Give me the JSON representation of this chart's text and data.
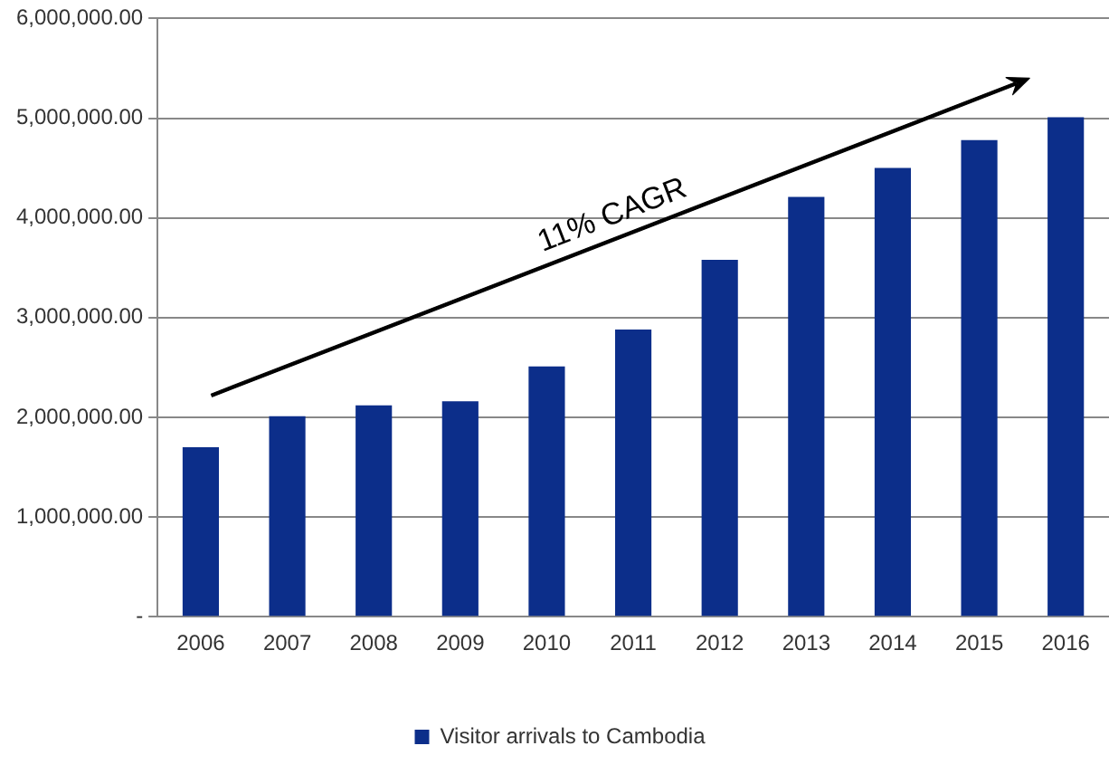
{
  "chart_data": {
    "type": "bar",
    "categories": [
      "2006",
      "2007",
      "2008",
      "2009",
      "2010",
      "2011",
      "2012",
      "2013",
      "2014",
      "2015",
      "2016"
    ],
    "series": [
      {
        "name": "Visitor arrivals to Cambodia",
        "color": "#0c2e8a",
        "values": [
          1700000,
          2010000,
          2120000,
          2160000,
          2510000,
          2880000,
          3580000,
          4210000,
          4500000,
          4780000,
          5010000
        ]
      }
    ],
    "ylim": [
      0,
      6000000
    ],
    "yticks": [
      {
        "value": 0,
        "label": "-"
      },
      {
        "value": 1000000,
        "label": "1,000,000.00"
      },
      {
        "value": 2000000,
        "label": "2,000,000.00"
      },
      {
        "value": 3000000,
        "label": "3,000,000.00"
      },
      {
        "value": 4000000,
        "label": "4,000,000.00"
      },
      {
        "value": 5000000,
        "label": "5,000,000.00"
      },
      {
        "value": 6000000,
        "label": "6,000,000.00"
      }
    ],
    "grid": "y",
    "legend": "bottom",
    "annotations": [
      "11% CAGR"
    ]
  }
}
